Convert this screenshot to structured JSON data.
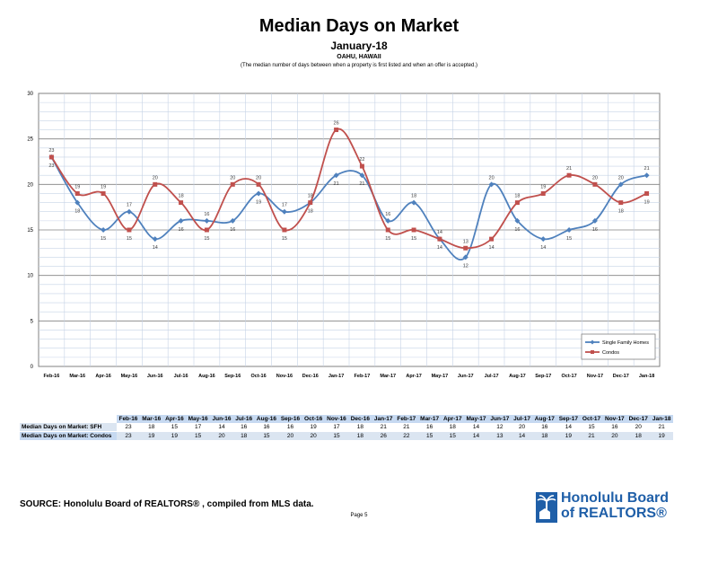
{
  "header": {
    "title": "Median Days on Market",
    "subtitle": "January-18",
    "location": "OAHU, HAWAII",
    "note": "(The median number of days between when a property is first listed and when an offer is accepted.)"
  },
  "chart_data": {
    "type": "line",
    "categories": [
      "Feb-16",
      "Mar-16",
      "Apr-16",
      "May-16",
      "Jun-16",
      "Jul-16",
      "Aug-16",
      "Sep-16",
      "Oct-16",
      "Nov-16",
      "Dec-16",
      "Jan-17",
      "Feb-17",
      "Mar-17",
      "Apr-17",
      "May-17",
      "Jun-17",
      "Jul-17",
      "Aug-17",
      "Sep-17",
      "Oct-17",
      "Nov-17",
      "Dec-17",
      "Jan-18"
    ],
    "series": [
      {
        "name": "Single Family Homes",
        "color": "#4f81bd",
        "marker": "diamond",
        "values": [
          23,
          18,
          15,
          17,
          14,
          16,
          16,
          16,
          19,
          17,
          18,
          21,
          21,
          16,
          18,
          14,
          12,
          20,
          16,
          14,
          15,
          16,
          20,
          21
        ]
      },
      {
        "name": "Condos",
        "color": "#c0504d",
        "marker": "square",
        "values": [
          23,
          19,
          19,
          15,
          20,
          18,
          15,
          20,
          20,
          15,
          18,
          26,
          22,
          15,
          15,
          14,
          13,
          14,
          18,
          19,
          21,
          20,
          18,
          19
        ]
      }
    ],
    "ylim": [
      0,
      30
    ],
    "yticks": [
      0,
      5,
      10,
      15,
      20,
      25,
      30
    ],
    "grid": true,
    "legend_position": "bottom-right"
  },
  "table": {
    "rows": [
      {
        "label": "Median Days on Market: SFH",
        "values": [
          23,
          18,
          15,
          17,
          14,
          16,
          16,
          16,
          19,
          17,
          18,
          21,
          21,
          16,
          18,
          14,
          12,
          20,
          16,
          14,
          15,
          16,
          20,
          21
        ]
      },
      {
        "label": "Median Days on Market: Condos",
        "values": [
          23,
          19,
          19,
          15,
          20,
          18,
          15,
          20,
          20,
          15,
          18,
          26,
          22,
          15,
          15,
          14,
          13,
          14,
          18,
          19,
          21,
          20,
          18,
          19
        ]
      }
    ]
  },
  "footer": {
    "source": "SOURCE:  Honolulu Board of REALTORS® , compiled from MLS data.",
    "page": "Page 5",
    "logo_line1": "Honolulu Board",
    "logo_line2": "of REALTORS®",
    "logo_color": "#1f5fa8"
  }
}
